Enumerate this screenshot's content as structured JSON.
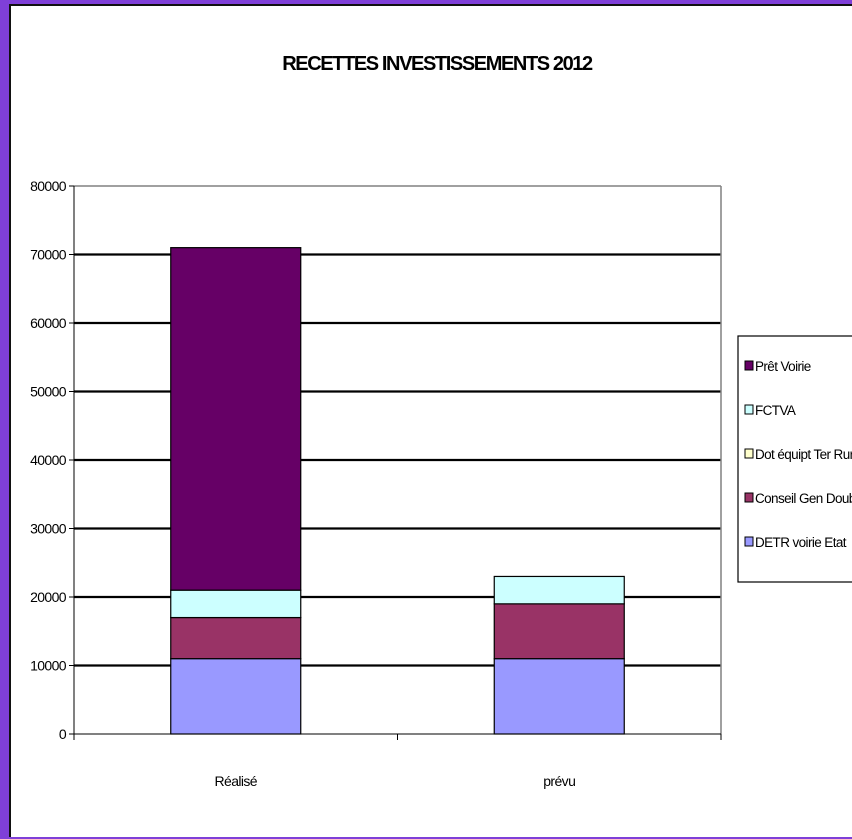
{
  "colors": {
    "page_background": "#7f3fd8",
    "chart_background": "#ffffff"
  },
  "chart_data": {
    "type": "bar",
    "stacked": true,
    "title": "RECETTES INVESTISSEMENTS 2012",
    "xlabel": "",
    "ylabel": "",
    "categories": [
      "Réalisé",
      "prévu"
    ],
    "ylim": [
      0,
      80000
    ],
    "yticks": [
      0,
      10000,
      20000,
      30000,
      40000,
      50000,
      60000,
      70000,
      80000
    ],
    "grid": true,
    "legend_position": "right",
    "series": [
      {
        "name": "DETR voirie Etat",
        "color": "#9999ff",
        "values": [
          11000,
          11000
        ]
      },
      {
        "name": "Conseil Gen Doubs",
        "color": "#993366",
        "values": [
          6000,
          8000
        ]
      },
      {
        "name": "Dot équipt Ter Rur",
        "color": "#ffffcc",
        "values": [
          0,
          0
        ]
      },
      {
        "name": "FCTVA",
        "color": "#ccffff",
        "values": [
          4000,
          4000
        ]
      },
      {
        "name": "Prêt Voirie",
        "color": "#660066",
        "values": [
          50000,
          0
        ]
      }
    ]
  }
}
